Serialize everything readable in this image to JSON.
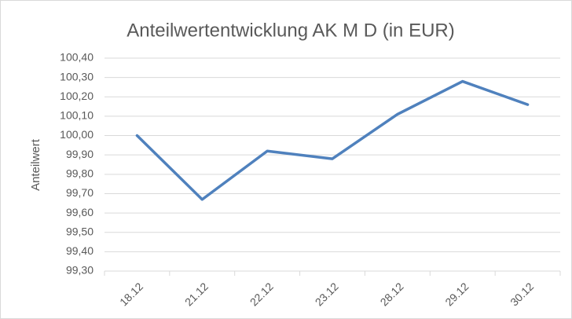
{
  "chart_data": {
    "type": "line",
    "title": "Anteilwertentwicklung AK M D (in EUR)",
    "y_label": "Anteilwert",
    "categories": [
      "18.12",
      "21.12",
      "22.12",
      "23.12",
      "28.12",
      "29.12",
      "30.12"
    ],
    "values": [
      100.0,
      99.67,
      99.92,
      99.88,
      100.11,
      100.28,
      100.16
    ],
    "color": "#4f81bd",
    "ylim": [
      99.3,
      100.4
    ],
    "yticks": [
      {
        "value": 99.3,
        "label": "99,30"
      },
      {
        "value": 99.4,
        "label": "99,40"
      },
      {
        "value": 99.5,
        "label": "99,50"
      },
      {
        "value": 99.6,
        "label": "99,60"
      },
      {
        "value": 99.7,
        "label": "99,70"
      },
      {
        "value": 99.8,
        "label": "99,80"
      },
      {
        "value": 99.9,
        "label": "99,90"
      },
      {
        "value": 100.0,
        "label": "100,00"
      },
      {
        "value": 100.1,
        "label": "100,10"
      },
      {
        "value": 100.2,
        "label": "100,20"
      },
      {
        "value": 100.3,
        "label": "100,30"
      },
      {
        "value": 100.4,
        "label": "100,40"
      }
    ],
    "grid": true
  }
}
